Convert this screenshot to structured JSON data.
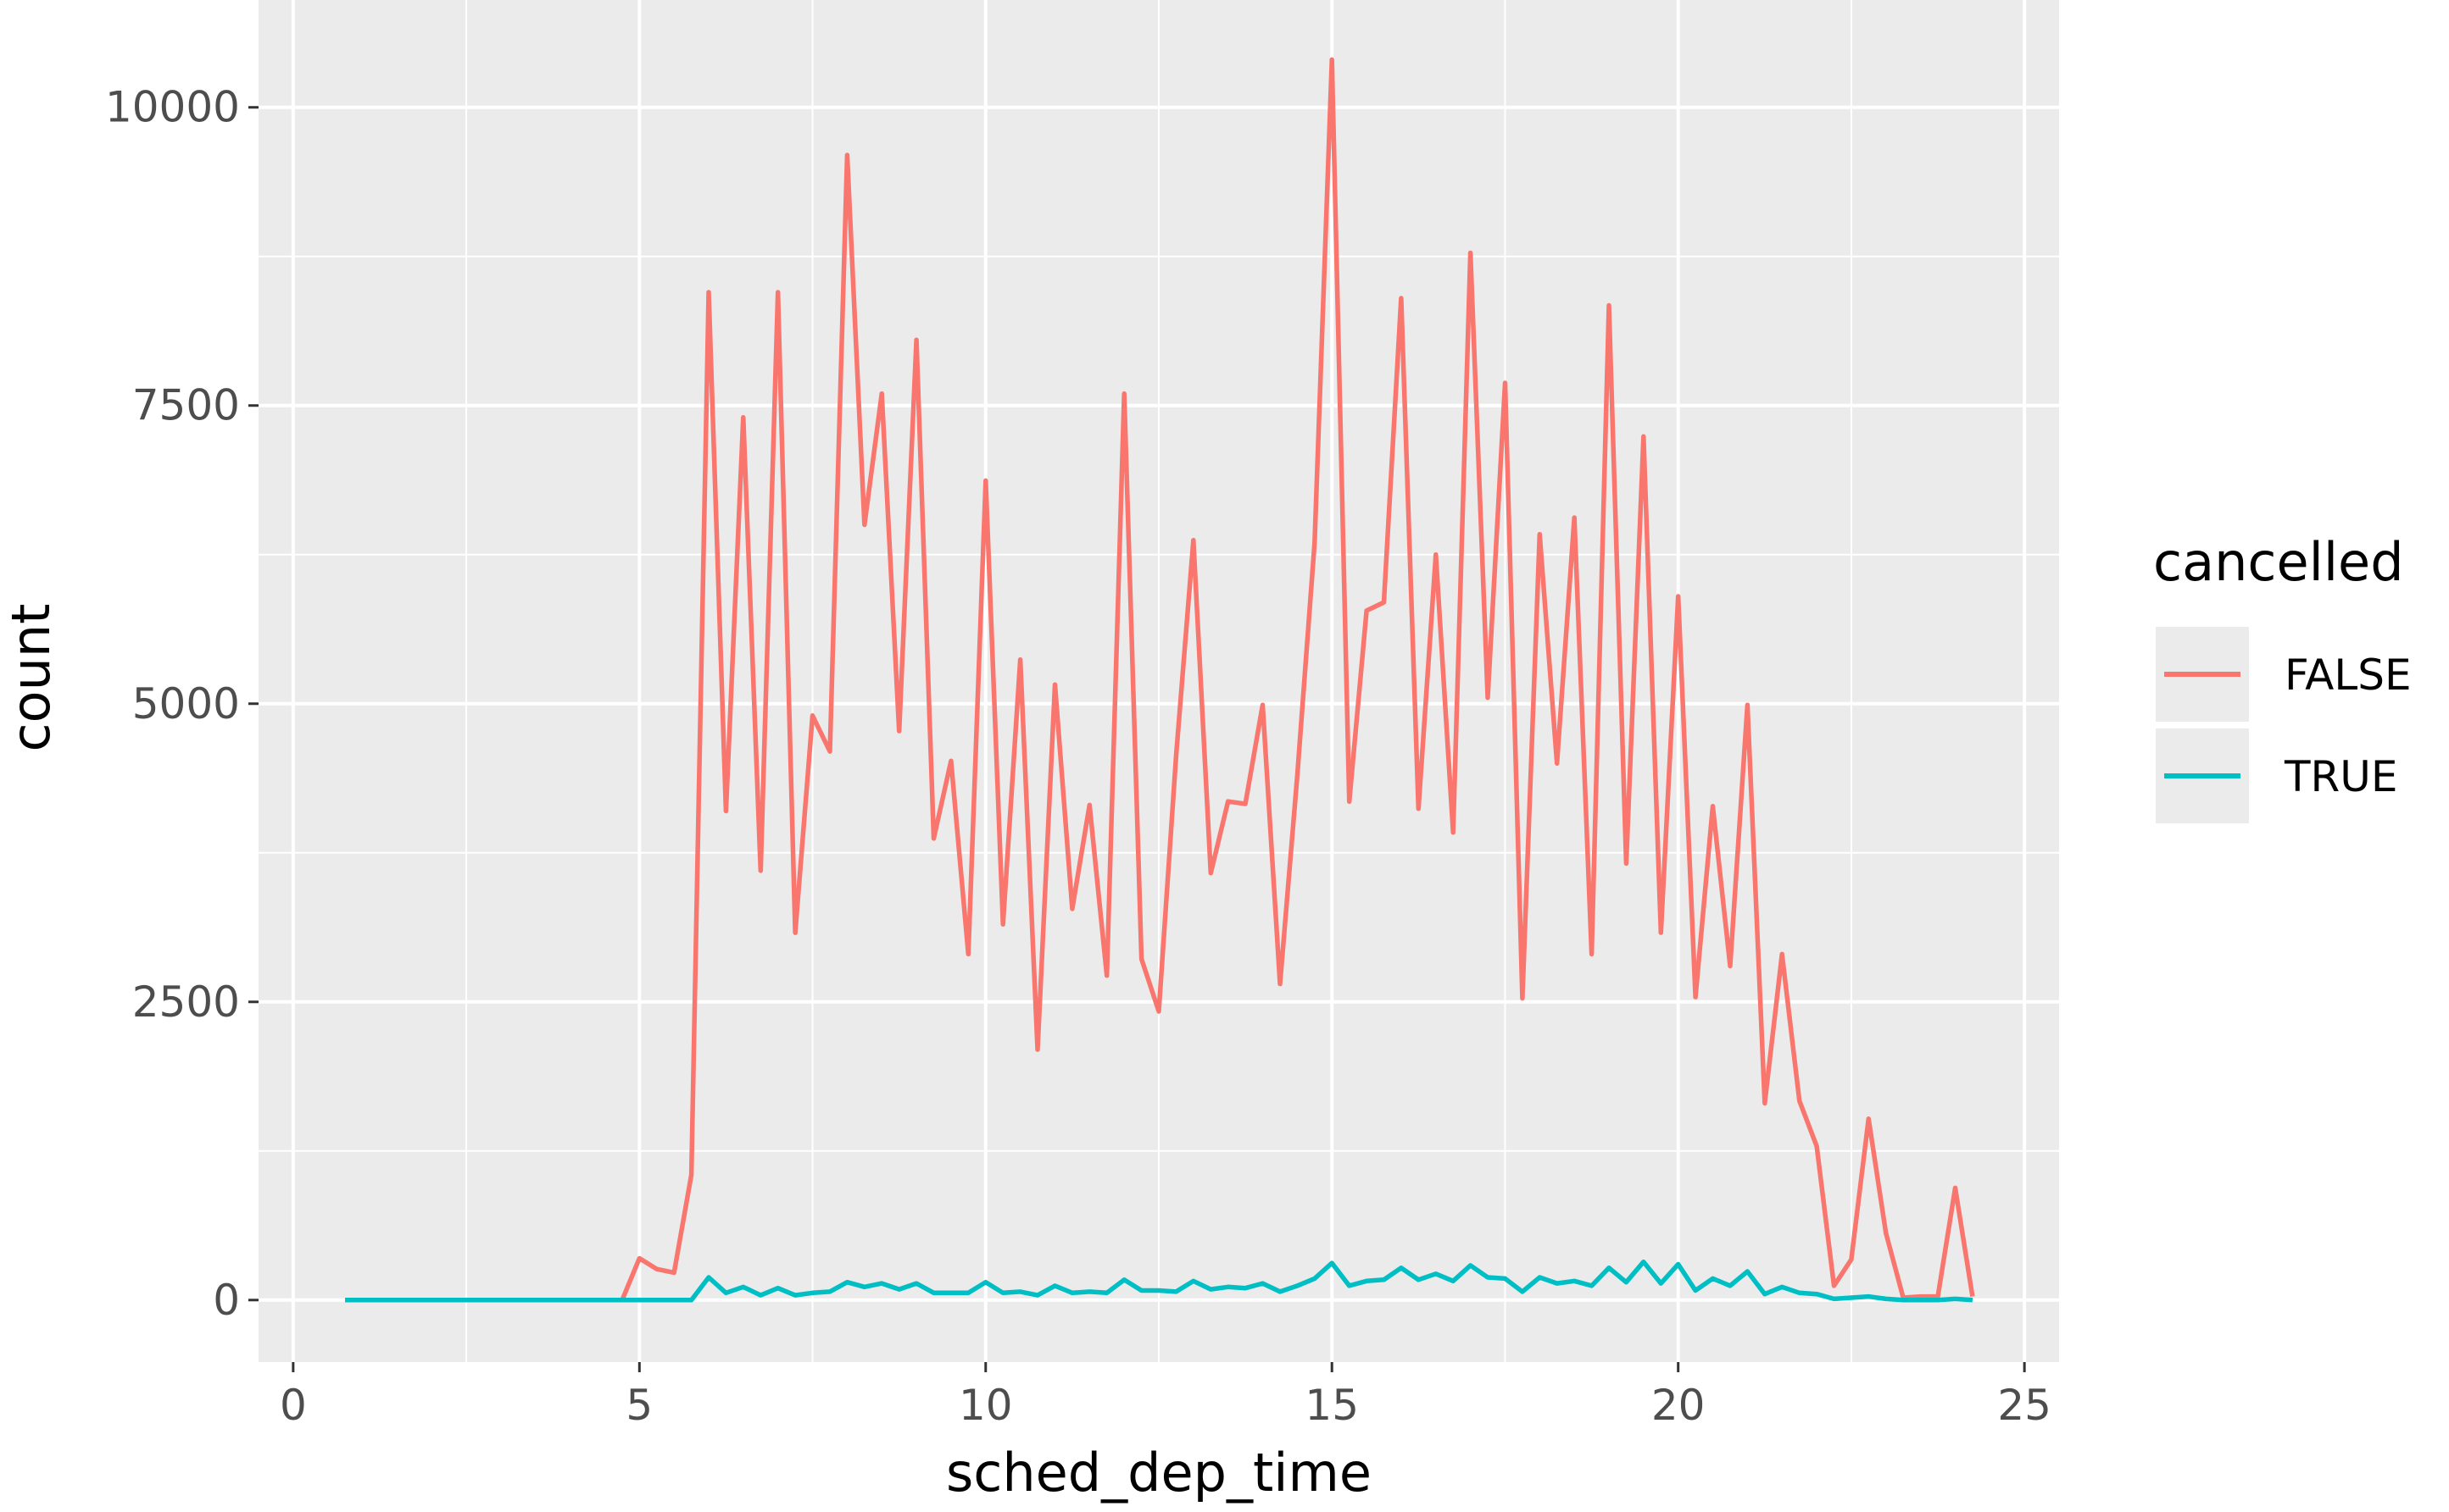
{
  "chart_data": {
    "type": "line",
    "xlabel": "sched_dep_time",
    "ylabel": "count",
    "xlim": [
      -0.5,
      25.5
    ],
    "ylim": [
      -520,
      10900
    ],
    "x_ticks": [
      0,
      5,
      10,
      15,
      20,
      25
    ],
    "x_tick_labels": [
      "0",
      "5",
      "10",
      "15",
      "20",
      "25"
    ],
    "y_ticks": [
      0,
      2500,
      5000,
      7500,
      10000
    ],
    "y_tick_labels": [
      "0",
      "2500",
      "5000",
      "7500",
      "10000"
    ],
    "grid": true,
    "legend": {
      "title": "cancelled",
      "position": "right"
    },
    "x": [
      0.75,
      1.0,
      1.25,
      1.5,
      1.75,
      2.0,
      2.25,
      2.5,
      2.75,
      3.0,
      3.25,
      3.5,
      3.75,
      4.0,
      4.25,
      4.5,
      4.75,
      5.0,
      5.25,
      5.5,
      5.75,
      6.0,
      6.25,
      6.5,
      6.75,
      7.0,
      7.25,
      7.5,
      7.75,
      8.0,
      8.25,
      8.5,
      8.75,
      9.0,
      9.25,
      9.5,
      9.75,
      10.0,
      10.25,
      10.5,
      10.75,
      11.0,
      11.25,
      11.5,
      11.75,
      12.0,
      12.25,
      12.5,
      12.75,
      13.0,
      13.25,
      13.5,
      13.75,
      14.0,
      14.25,
      14.5,
      14.75,
      15.0,
      15.25,
      15.5,
      15.75,
      16.0,
      16.25,
      16.5,
      16.75,
      17.0,
      17.25,
      17.5,
      17.75,
      18.0,
      18.25,
      18.5,
      18.75,
      19.0,
      19.25,
      19.5,
      19.75,
      20.0,
      20.25,
      20.5,
      20.75,
      21.0,
      21.25,
      21.5,
      21.75,
      22.0,
      22.25,
      22.5,
      22.75,
      23.0,
      23.25,
      23.5,
      23.75,
      24.0,
      24.25
    ],
    "series": [
      {
        "name": "FALSE",
        "color": "#F8766D",
        "values": [
          0,
          0,
          0,
          0,
          0,
          0,
          0,
          0,
          0,
          0,
          0,
          0,
          0,
          0,
          0,
          0,
          0,
          350,
          260,
          230,
          1050,
          8450,
          4100,
          7400,
          3600,
          8450,
          3080,
          4900,
          4600,
          9600,
          6500,
          7600,
          4770,
          8050,
          3870,
          4520,
          2900,
          6870,
          3150,
          5370,
          2100,
          5160,
          3280,
          4150,
          2720,
          7600,
          2860,
          2420,
          4560,
          6370,
          3580,
          4180,
          4160,
          4990,
          2650,
          4400,
          6350,
          10400,
          4180,
          5780,
          5850,
          8400,
          4120,
          6250,
          3920,
          8780,
          5050,
          7690,
          2530,
          6420,
          4500,
          6560,
          2900,
          8340,
          3660,
          7240,
          3080,
          5900,
          2540,
          4140,
          2800,
          4990,
          1650,
          2900,
          1670,
          1290,
          120,
          340,
          1520,
          560,
          20,
          30,
          30,
          940,
          30
        ]
      },
      {
        "name": "TRUE",
        "color": "#00BFC4",
        "values": [
          0,
          0,
          0,
          0,
          0,
          0,
          0,
          0,
          0,
          0,
          0,
          0,
          0,
          0,
          0,
          0,
          0,
          0,
          0,
          0,
          0,
          190,
          60,
          110,
          40,
          100,
          40,
          60,
          70,
          150,
          110,
          140,
          90,
          140,
          60,
          60,
          60,
          150,
          60,
          70,
          40,
          120,
          60,
          70,
          60,
          170,
          80,
          80,
          70,
          160,
          90,
          110,
          100,
          140,
          70,
          120,
          180,
          310,
          120,
          160,
          170,
          270,
          170,
          220,
          160,
          290,
          190,
          180,
          70,
          190,
          140,
          160,
          120,
          270,
          150,
          320,
          140,
          300,
          80,
          180,
          120,
          240,
          50,
          110,
          60,
          50,
          10,
          20,
          30,
          10,
          0,
          0,
          0,
          10,
          0
        ]
      }
    ]
  }
}
